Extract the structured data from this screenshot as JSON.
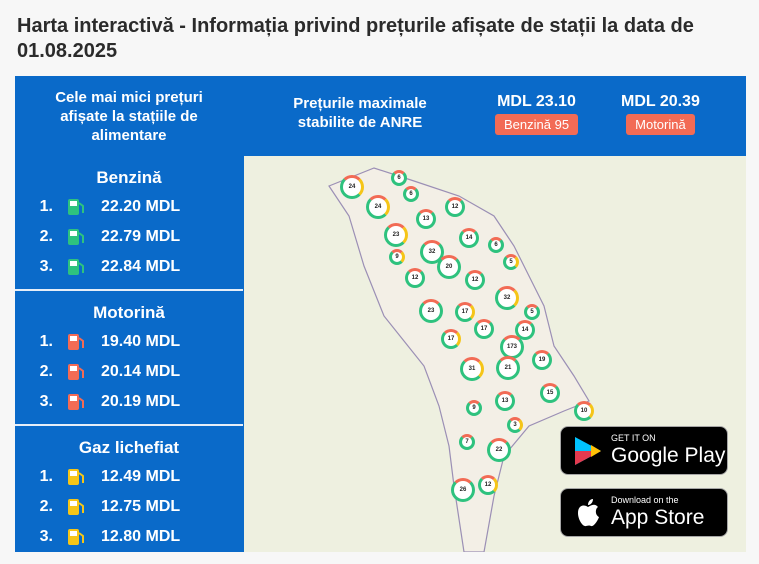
{
  "title": "Harta interactivă - Informația privind prețurile afișate de stații la data de 01.08.2025",
  "lowest_header": "Cele mai mici prețuri afișate la stațiile de alimentare",
  "max_header": "Prețurile maximale stabilite de ANRE",
  "max_prices": [
    {
      "value": "MDL 23.10",
      "label": "Benzină 95"
    },
    {
      "value": "MDL 20.39",
      "label": "Motorină"
    }
  ],
  "colors": {
    "panel": "#0a6ac9",
    "badge": "#f26b55",
    "benzina": "#2ec27e",
    "motorina": "#f26b55",
    "gaz": "#f5c518"
  },
  "sections": [
    {
      "title": "Benzină",
      "icon": "fuel-pump-green",
      "items": [
        {
          "rank": "1.",
          "price": "22.20 MDL"
        },
        {
          "rank": "2.",
          "price": "22.79 MDL"
        },
        {
          "rank": "3.",
          "price": "22.84 MDL"
        }
      ]
    },
    {
      "title": "Motorină",
      "icon": "fuel-pump-red",
      "items": [
        {
          "rank": "1.",
          "price": "19.40 MDL"
        },
        {
          "rank": "2.",
          "price": "20.14 MDL"
        },
        {
          "rank": "3.",
          "price": "20.19 MDL"
        }
      ]
    },
    {
      "title": "Gaz lichefiat",
      "icon": "fuel-pump-yellow",
      "items": [
        {
          "rank": "1.",
          "price": "12.49 MDL"
        },
        {
          "rank": "2.",
          "price": "12.75 MDL"
        },
        {
          "rank": "3.",
          "price": "12.80 MDL"
        }
      ]
    }
  ],
  "clusters": [
    "24",
    "6",
    "6",
    "24",
    "12",
    "13",
    "23",
    "14",
    "6",
    "9",
    "32",
    "20",
    "5",
    "12",
    "12",
    "32",
    "5",
    "23",
    "17",
    "17",
    "14",
    "17",
    "173",
    "19",
    "31",
    "21",
    "15",
    "10",
    "9",
    "13",
    "3",
    "7",
    "22",
    "12",
    "26"
  ],
  "stores": {
    "google": {
      "small": "GET IT ON",
      "large": "Google Play"
    },
    "apple": {
      "small": "Download on the",
      "large": "App Store"
    }
  }
}
